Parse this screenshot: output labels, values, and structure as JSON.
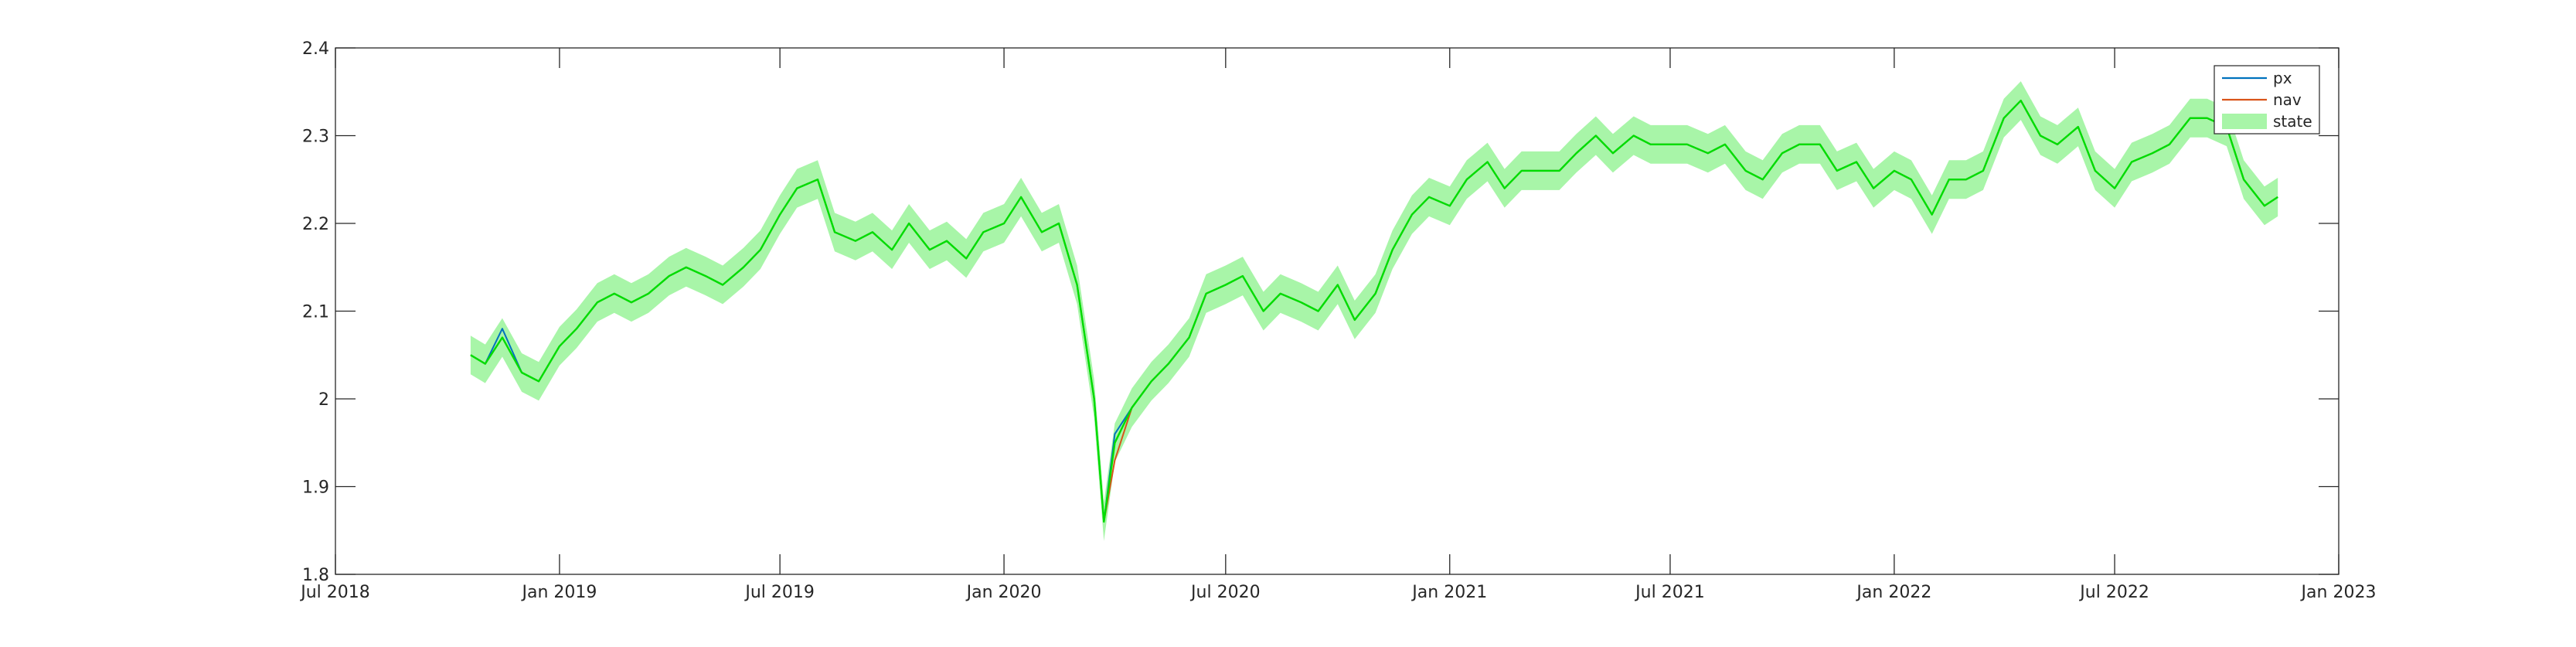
{
  "chart_data": {
    "type": "line",
    "title": "",
    "xlabel": "",
    "ylabel": "",
    "xlim": [
      "2018-07-01",
      "2023-01-01"
    ],
    "ylim": [
      1.8,
      2.4
    ],
    "grid": false,
    "legend_position": "top-right",
    "x_ticks": [
      {
        "date": "2018-07-01",
        "label": "Jul 2018"
      },
      {
        "date": "2019-01-01",
        "label": "Jan 2019"
      },
      {
        "date": "2019-07-01",
        "label": "Jul 2019"
      },
      {
        "date": "2020-01-01",
        "label": "Jan 2020"
      },
      {
        "date": "2020-07-01",
        "label": "Jul 2020"
      },
      {
        "date": "2021-01-01",
        "label": "Jan 2021"
      },
      {
        "date": "2021-07-01",
        "label": "Jul 2021"
      },
      {
        "date": "2022-01-01",
        "label": "Jan 2022"
      },
      {
        "date": "2022-07-01",
        "label": "Jul 2022"
      },
      {
        "date": "2023-01-01",
        "label": "Jan 2023"
      }
    ],
    "y_ticks": [
      {
        "value": 1.8,
        "label": "1.8"
      },
      {
        "value": 1.9,
        "label": "1.9"
      },
      {
        "value": 2.0,
        "label": "2"
      },
      {
        "value": 2.1,
        "label": "2.1"
      },
      {
        "value": 2.2,
        "label": "2.2"
      },
      {
        "value": 2.3,
        "label": "2.3"
      },
      {
        "value": 2.4,
        "label": "2.4"
      }
    ],
    "x": [
      "2018-10-20",
      "2018-11-01",
      "2018-11-15",
      "2018-12-01",
      "2018-12-15",
      "2019-01-01",
      "2019-01-15",
      "2019-02-01",
      "2019-02-15",
      "2019-03-01",
      "2019-03-15",
      "2019-04-01",
      "2019-04-15",
      "2019-05-01",
      "2019-05-15",
      "2019-06-01",
      "2019-06-15",
      "2019-07-01",
      "2019-07-15",
      "2019-08-01",
      "2019-08-15",
      "2019-09-01",
      "2019-09-15",
      "2019-10-01",
      "2019-10-15",
      "2019-11-01",
      "2019-11-15",
      "2019-12-01",
      "2019-12-15",
      "2020-01-01",
      "2020-01-15",
      "2020-02-01",
      "2020-02-15",
      "2020-03-01",
      "2020-03-15",
      "2020-03-23",
      "2020-04-01",
      "2020-04-15",
      "2020-05-01",
      "2020-05-15",
      "2020-06-01",
      "2020-06-15",
      "2020-07-01",
      "2020-07-15",
      "2020-08-01",
      "2020-08-15",
      "2020-09-01",
      "2020-09-15",
      "2020-10-01",
      "2020-10-15",
      "2020-11-01",
      "2020-11-15",
      "2020-12-01",
      "2020-12-15",
      "2021-01-01",
      "2021-01-15",
      "2021-02-01",
      "2021-02-15",
      "2021-03-01",
      "2021-03-15",
      "2021-04-01",
      "2021-04-15",
      "2021-05-01",
      "2021-05-15",
      "2021-06-01",
      "2021-06-15",
      "2021-07-01",
      "2021-07-15",
      "2021-08-01",
      "2021-08-15",
      "2021-09-01",
      "2021-09-15",
      "2021-10-01",
      "2021-10-15",
      "2021-11-01",
      "2021-11-15",
      "2021-12-01",
      "2021-12-15",
      "2022-01-01",
      "2022-01-15",
      "2022-02-01",
      "2022-02-15",
      "2022-03-01",
      "2022-03-15",
      "2022-04-01",
      "2022-04-15",
      "2022-05-01",
      "2022-05-15",
      "2022-06-01",
      "2022-06-15",
      "2022-07-01",
      "2022-07-15",
      "2022-08-01",
      "2022-08-15",
      "2022-09-01",
      "2022-09-15",
      "2022-10-01",
      "2022-10-15",
      "2022-11-01",
      "2022-11-12"
    ],
    "series": [
      {
        "name": "px",
        "color": "#0072BD",
        "values": [
          2.05,
          2.04,
          2.08,
          2.03,
          2.02,
          2.06,
          2.08,
          2.11,
          2.12,
          2.11,
          2.12,
          2.14,
          2.15,
          2.14,
          2.13,
          2.15,
          2.17,
          2.21,
          2.24,
          2.25,
          2.19,
          2.18,
          2.19,
          2.17,
          2.2,
          2.17,
          2.18,
          2.16,
          2.19,
          2.2,
          2.23,
          2.19,
          2.2,
          2.13,
          2.0,
          1.86,
          1.96,
          1.99,
          2.02,
          2.04,
          2.07,
          2.12,
          2.13,
          2.14,
          2.1,
          2.12,
          2.11,
          2.1,
          2.13,
          2.09,
          2.12,
          2.17,
          2.21,
          2.23,
          2.22,
          2.25,
          2.27,
          2.24,
          2.26,
          2.26,
          2.26,
          2.28,
          2.3,
          2.28,
          2.3,
          2.29,
          2.29,
          2.29,
          2.28,
          2.29,
          2.26,
          2.25,
          2.28,
          2.29,
          2.29,
          2.26,
          2.27,
          2.24,
          2.26,
          2.25,
          2.21,
          2.25,
          2.25,
          2.26,
          2.32,
          2.34,
          2.3,
          2.29,
          2.31,
          2.26,
          2.24,
          2.27,
          2.28,
          2.29,
          2.32,
          2.32,
          2.31,
          2.25,
          2.22,
          2.23
        ]
      },
      {
        "name": "nav",
        "color": "#D95319",
        "values": [
          2.05,
          2.04,
          2.07,
          2.03,
          2.02,
          2.06,
          2.08,
          2.11,
          2.12,
          2.11,
          2.12,
          2.14,
          2.15,
          2.14,
          2.13,
          2.15,
          2.17,
          2.21,
          2.24,
          2.25,
          2.19,
          2.18,
          2.19,
          2.17,
          2.2,
          2.17,
          2.18,
          2.16,
          2.19,
          2.2,
          2.23,
          2.19,
          2.2,
          2.13,
          2.0,
          1.86,
          1.93,
          1.99,
          2.02,
          2.04,
          2.07,
          2.12,
          2.13,
          2.14,
          2.1,
          2.12,
          2.11,
          2.1,
          2.13,
          2.09,
          2.12,
          2.17,
          2.21,
          2.23,
          2.22,
          2.25,
          2.27,
          2.24,
          2.26,
          2.26,
          2.26,
          2.28,
          2.3,
          2.28,
          2.3,
          2.29,
          2.29,
          2.29,
          2.28,
          2.29,
          2.26,
          2.25,
          2.28,
          2.29,
          2.29,
          2.26,
          2.27,
          2.24,
          2.26,
          2.25,
          2.21,
          2.25,
          2.25,
          2.26,
          2.32,
          2.34,
          2.3,
          2.29,
          2.31,
          2.26,
          2.24,
          2.27,
          2.28,
          2.29,
          2.32,
          2.32,
          2.31,
          2.25,
          2.22,
          2.23
        ]
      },
      {
        "name": "state",
        "color": "#00DD00",
        "band_color": "#A8F5A8",
        "band_halfwidth": 0.022,
        "values": [
          2.05,
          2.04,
          2.07,
          2.03,
          2.02,
          2.06,
          2.08,
          2.11,
          2.12,
          2.11,
          2.12,
          2.14,
          2.15,
          2.14,
          2.13,
          2.15,
          2.17,
          2.21,
          2.24,
          2.25,
          2.19,
          2.18,
          2.19,
          2.17,
          2.2,
          2.17,
          2.18,
          2.16,
          2.19,
          2.2,
          2.23,
          2.19,
          2.2,
          2.13,
          2.0,
          1.86,
          1.95,
          1.99,
          2.02,
          2.04,
          2.07,
          2.12,
          2.13,
          2.14,
          2.1,
          2.12,
          2.11,
          2.1,
          2.13,
          2.09,
          2.12,
          2.17,
          2.21,
          2.23,
          2.22,
          2.25,
          2.27,
          2.24,
          2.26,
          2.26,
          2.26,
          2.28,
          2.3,
          2.28,
          2.3,
          2.29,
          2.29,
          2.29,
          2.28,
          2.29,
          2.26,
          2.25,
          2.28,
          2.29,
          2.29,
          2.26,
          2.27,
          2.24,
          2.26,
          2.25,
          2.21,
          2.25,
          2.25,
          2.26,
          2.32,
          2.34,
          2.3,
          2.29,
          2.31,
          2.26,
          2.24,
          2.27,
          2.28,
          2.29,
          2.32,
          2.32,
          2.31,
          2.25,
          2.22,
          2.23
        ]
      }
    ]
  }
}
